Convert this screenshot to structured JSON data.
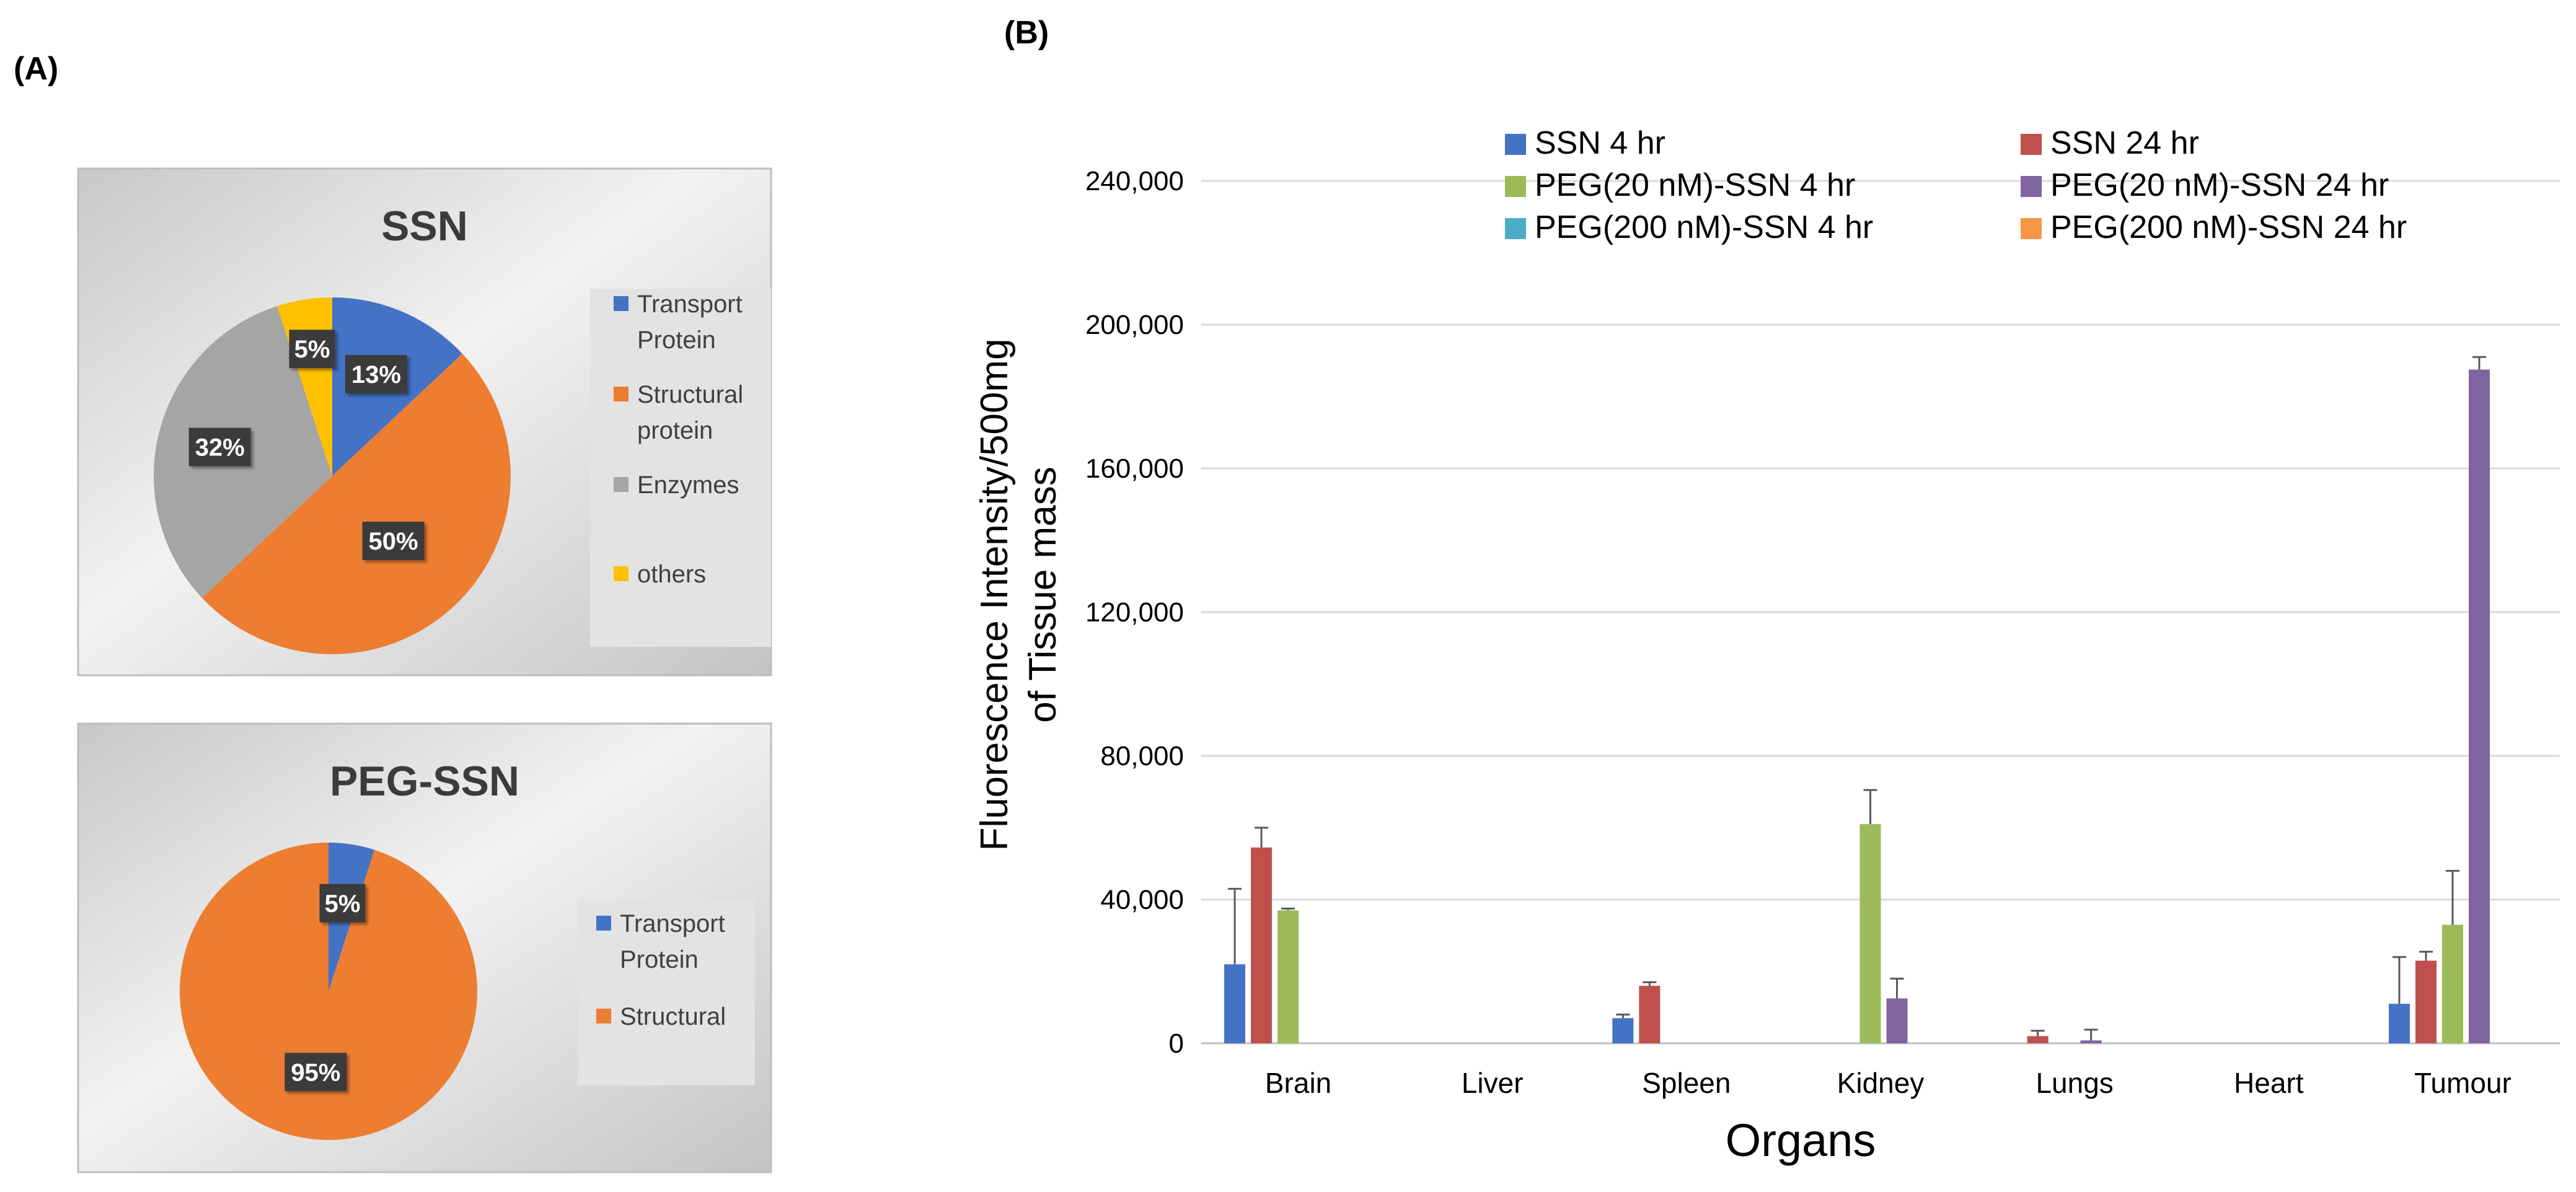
{
  "panel_labels": {
    "a": "(A)",
    "b": "(B)"
  },
  "chart_data": [
    {
      "type": "pie",
      "title": "SSN",
      "slices": [
        {
          "name": "Transport Protein",
          "value": 13,
          "label": "13%",
          "color": "#4472C4"
        },
        {
          "name": "Structural protein",
          "value": 50,
          "label": "50%",
          "color": "#ED7D31"
        },
        {
          "name": "Enzymes",
          "value": 32,
          "label": "32%",
          "color": "#A5A5A5"
        },
        {
          "name": "others",
          "value": 5,
          "label": "5%",
          "color": "#FFC000"
        }
      ],
      "legend": [
        {
          "lines": [
            "Transport",
            "Protein"
          ],
          "color": "#4472C4"
        },
        {
          "lines": [
            "Structural",
            "protein"
          ],
          "color": "#ED7D31"
        },
        {
          "lines": [
            "Enzymes"
          ],
          "color": "#A5A5A5"
        },
        {
          "lines": [
            "others"
          ],
          "color": "#FFC000"
        }
      ],
      "legend_position": "right"
    },
    {
      "type": "pie",
      "title": "PEG-SSN",
      "slices": [
        {
          "name": "Transport Protein",
          "value": 5,
          "label": "5%",
          "color": "#4472C4"
        },
        {
          "name": "Structural",
          "value": 95,
          "label": "95%",
          "color": "#ED7D31"
        }
      ],
      "legend": [
        {
          "lines": [
            "Transport",
            "Protein"
          ],
          "color": "#4472C4"
        },
        {
          "lines": [
            "Structural"
          ],
          "color": "#ED7D31"
        }
      ],
      "legend_position": "right"
    },
    {
      "type": "bar",
      "title": "",
      "xlabel": "Organs",
      "ylabel_lines": [
        "Fluorescence Intensity/500mg",
        "of Tissue mass"
      ],
      "categories": [
        "Brain",
        "Liver",
        "Spleen",
        "Kidney",
        "Lungs",
        "Heart",
        "Tumour"
      ],
      "ylim": [
        0,
        240000
      ],
      "yticks": [
        0,
        40000,
        80000,
        120000,
        160000,
        200000,
        240000
      ],
      "ytick_labels": [
        "0",
        "40,000",
        "80,000",
        "120,000",
        "160,000",
        "200,000",
        "240,000"
      ],
      "grid": true,
      "legend_position": "top",
      "series": [
        {
          "name": "SSN 4 hr",
          "color": "#4472C4",
          "values": [
            22000,
            0,
            7000,
            0,
            0,
            0,
            11000
          ],
          "errors": [
            21000,
            0,
            1000,
            0,
            0,
            0,
            13000
          ]
        },
        {
          "name": "SSN 24 hr",
          "color": "#C0504D",
          "values": [
            54500,
            0,
            16000,
            0,
            2000,
            0,
            23000
          ],
          "errors": [
            5500,
            0,
            1000,
            0,
            1500,
            0,
            2500
          ]
        },
        {
          "name": "PEG(20 nM)-SSN 4 hr",
          "color": "#9BBB59",
          "values": [
            37000,
            0,
            0,
            61000,
            0,
            0,
            33000
          ],
          "errors": [
            500,
            0,
            0,
            9500,
            0,
            0,
            15000
          ]
        },
        {
          "name": "PEG(20 nM)-SSN 24 hr",
          "color": "#8064A2",
          "values": [
            0,
            0,
            0,
            12500,
            800,
            0,
            187500
          ],
          "errors": [
            0,
            0,
            0,
            5500,
            3000,
            0,
            3500
          ]
        },
        {
          "name": "PEG(200 nM)-SSN 4 hr",
          "color": "#4BACC6",
          "values": [
            0,
            0,
            0,
            0,
            0,
            0,
            0
          ],
          "errors": [
            0,
            0,
            0,
            0,
            0,
            0,
            0
          ]
        },
        {
          "name": "PEG(200 nM)-SSN 24 hr",
          "color": "#F79646",
          "values": [
            0,
            0,
            0,
            0,
            0,
            0,
            0
          ],
          "errors": [
            0,
            0,
            0,
            0,
            0,
            0,
            0
          ]
        }
      ]
    }
  ]
}
